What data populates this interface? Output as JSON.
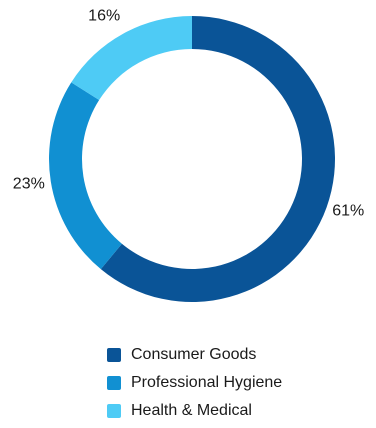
{
  "chart_data": {
    "type": "pie",
    "donut": true,
    "categories": [
      "Consumer Goods",
      "Professional Hygiene",
      "Health & Medical"
    ],
    "values": [
      61,
      23,
      16
    ],
    "data_labels": [
      "61%",
      "23%",
      "16%"
    ],
    "colors": [
      "#0a5497",
      "#1190d2",
      "#4ecbf5"
    ],
    "legend_position": "bottom",
    "title": ""
  }
}
